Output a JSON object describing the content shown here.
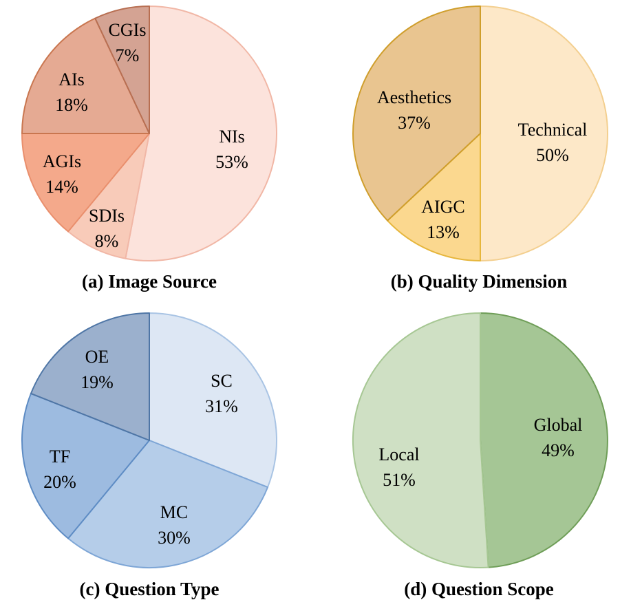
{
  "chart_data": [
    {
      "type": "pie",
      "title": "(a) Image Source",
      "slices": [
        {
          "label": "NIs",
          "value_label": "53%",
          "value": 53,
          "color": "#fce3dc",
          "stroke": "#f1b7a6",
          "text_color": "#000000"
        },
        {
          "label": "SDIs",
          "value_label": "8%",
          "value": 8,
          "color": "#f8cbb9",
          "stroke": "#f1b7a6",
          "text_color": "#000000"
        },
        {
          "label": "AGIs",
          "value_label": "14%",
          "value": 14,
          "color": "#f4a98b",
          "stroke": "#e98f6d",
          "text_color": "#000000"
        },
        {
          "label": "AIs",
          "value_label": "18%",
          "value": 18,
          "color": "#e5aa93",
          "stroke": "#c9764f",
          "text_color": "#000000"
        },
        {
          "label": "CGIs",
          "value_label": "7%",
          "value": 7,
          "color": "#d4a393",
          "stroke": "#b86f52",
          "text_color": "#000000"
        }
      ]
    },
    {
      "type": "pie",
      "title": "(b) Quality Dimension",
      "slices": [
        {
          "label": "Technical",
          "value_label": "50%",
          "value": 50,
          "color": "#fde8c8",
          "stroke": "#f3cf8f",
          "text_color": "#000000"
        },
        {
          "label": "AIGC",
          "value_label": "13%",
          "value": 13,
          "color": "#fbd88f",
          "stroke": "#e6b63c",
          "text_color": "#000000"
        },
        {
          "label": "Aesthetics",
          "value_label": "37%",
          "value": 37,
          "color": "#e9c590",
          "stroke": "#cf9e2b",
          "text_color": "#000000"
        }
      ]
    },
    {
      "type": "pie",
      "title": "(c) Question Type",
      "slices": [
        {
          "label": "SC",
          "value_label": "31%",
          "value": 31,
          "color": "#dde7f4",
          "stroke": "#a9c4e4",
          "text_color": "#000000"
        },
        {
          "label": "MC",
          "value_label": "30%",
          "value": 30,
          "color": "#b5cde9",
          "stroke": "#7ea6d6",
          "text_color": "#000000"
        },
        {
          "label": "TF",
          "value_label": "20%",
          "value": 20,
          "color": "#9dbbe0",
          "stroke": "#5e8cc4",
          "text_color": "#000000"
        },
        {
          "label": "OE",
          "value_label": "19%",
          "value": 19,
          "color": "#9bb0cd",
          "stroke": "#4f76a6",
          "text_color": "#000000"
        }
      ]
    },
    {
      "type": "pie",
      "title": "(d) Question Scope",
      "slices": [
        {
          "label": "Global",
          "value_label": "49%",
          "value": 49,
          "color": "#a5c695",
          "stroke": "#6f9e58",
          "text_color": "#000000"
        },
        {
          "label": "Local",
          "value_label": "51%",
          "value": 51,
          "color": "#cfe0c4",
          "stroke": "#a6c793",
          "text_color": "#000000"
        }
      ]
    }
  ]
}
